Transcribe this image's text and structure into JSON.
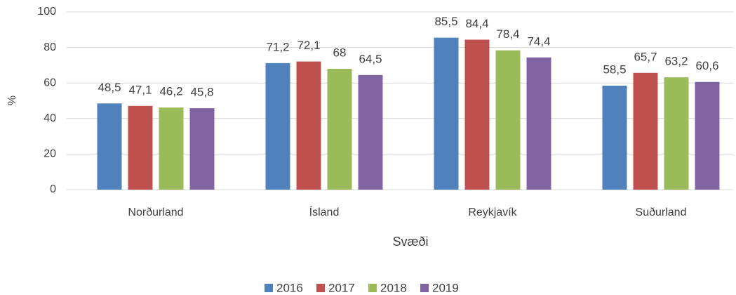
{
  "chart_data": {
    "type": "bar",
    "xlabel": "Svæði",
    "ylabel": "%",
    "categories": [
      "Norðurland",
      "Ísland",
      "Reykjavík",
      "Suðurland"
    ],
    "series": [
      {
        "name": "2016",
        "color": "#4f81bd",
        "values": [
          48.5,
          71.2,
          85.5,
          58.5
        ],
        "value_labels": [
          "48,5",
          "71,2",
          "85,5",
          "58,5"
        ]
      },
      {
        "name": "2017",
        "color": "#c0504d",
        "values": [
          47.1,
          72.1,
          84.4,
          65.7
        ],
        "value_labels": [
          "47,1",
          "72,1",
          "84,4",
          "65,7"
        ]
      },
      {
        "name": "2018",
        "color": "#9bbb59",
        "values": [
          46.2,
          68,
          78.4,
          63.2
        ],
        "value_labels": [
          "46,2",
          "68",
          "78,4",
          "63,2"
        ]
      },
      {
        "name": "2019",
        "color": "#8064a2",
        "values": [
          45.8,
          64.5,
          74.4,
          60.6
        ],
        "value_labels": [
          "45,8",
          "64,5",
          "74,4",
          "60,6"
        ]
      }
    ],
    "ylim": [
      0,
      100
    ],
    "yticks": [
      0,
      20,
      40,
      60,
      80,
      100
    ],
    "grid": true,
    "legend": "bottom"
  }
}
